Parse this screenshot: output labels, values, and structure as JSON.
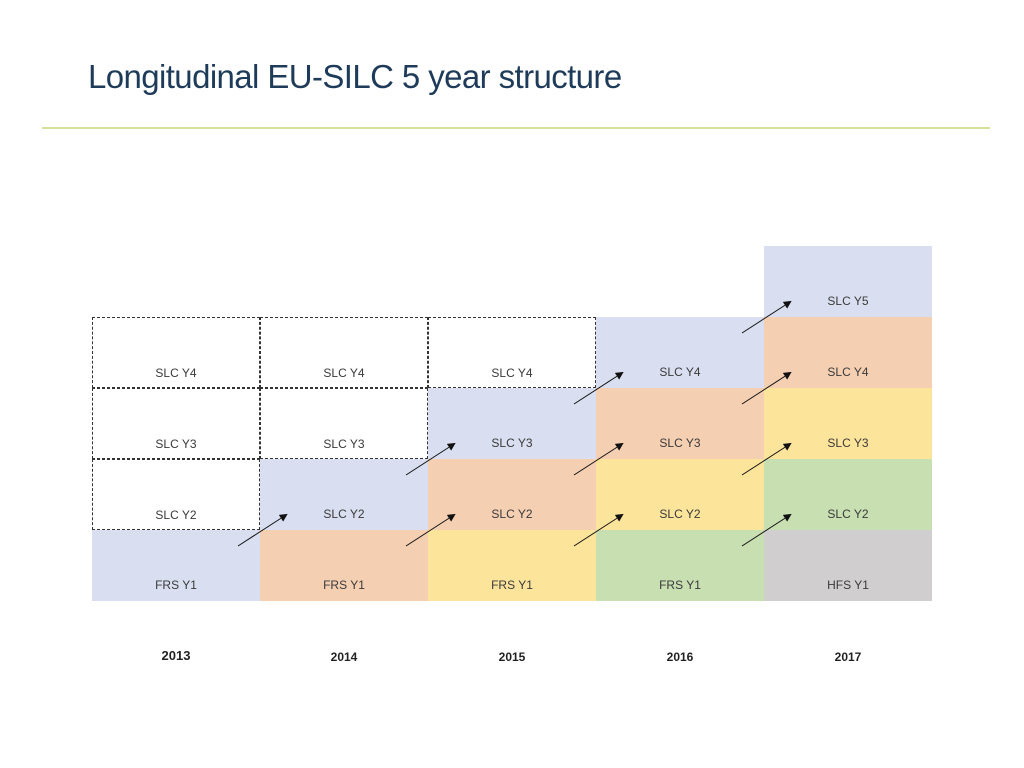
{
  "title": "Longitudinal EU-SILC 5 year structure",
  "colors": {
    "title": "#1f3b5a",
    "rule": "#d3e29b",
    "blue": "#d9dff0",
    "orange": "#f5cfb2",
    "yellow": "#fde49b",
    "green": "#c8dfb2",
    "grey": "#d0cecf"
  },
  "years": [
    "2013",
    "2014",
    "2015",
    "2016",
    "2017"
  ],
  "rows": [
    {
      "id": "y5",
      "cells": [
        {
          "label": "",
          "style": "empty"
        },
        {
          "label": "",
          "style": "empty"
        },
        {
          "label": "",
          "style": "empty"
        },
        {
          "label": "",
          "style": "empty"
        },
        {
          "label": "SLC Y5",
          "style": "blue"
        }
      ]
    },
    {
      "id": "y4",
      "cells": [
        {
          "label": "SLC Y4",
          "style": "dashed"
        },
        {
          "label": "SLC Y4",
          "style": "dashed"
        },
        {
          "label": "SLC Y4",
          "style": "dashed"
        },
        {
          "label": "SLC Y4",
          "style": "blue"
        },
        {
          "label": "SLC Y4",
          "style": "orange"
        }
      ]
    },
    {
      "id": "y3",
      "cells": [
        {
          "label": "SLC Y3",
          "style": "dashed"
        },
        {
          "label": "SLC Y3",
          "style": "dashed"
        },
        {
          "label": "SLC Y3",
          "style": "blue"
        },
        {
          "label": "SLC Y3",
          "style": "orange"
        },
        {
          "label": "SLC Y3",
          "style": "yellow"
        }
      ]
    },
    {
      "id": "y2",
      "cells": [
        {
          "label": "SLC Y2",
          "style": "dashed"
        },
        {
          "label": "SLC Y2",
          "style": "blue"
        },
        {
          "label": "SLC Y2",
          "style": "orange"
        },
        {
          "label": "SLC Y2",
          "style": "yellow"
        },
        {
          "label": "SLC Y2",
          "style": "green"
        }
      ]
    },
    {
      "id": "y1",
      "cells": [
        {
          "label": "FRS Y1",
          "style": "blue"
        },
        {
          "label": "FRS Y1",
          "style": "orange"
        },
        {
          "label": "FRS Y1",
          "style": "yellow"
        },
        {
          "label": "FRS Y1",
          "style": "green"
        },
        {
          "label": "HFS Y1",
          "style": "grey"
        }
      ]
    }
  ],
  "arrows": [
    {
      "from": [
        0,
        "y1"
      ],
      "to": [
        1,
        "y2"
      ]
    },
    {
      "from": [
        1,
        "y2"
      ],
      "to": [
        2,
        "y3"
      ]
    },
    {
      "from": [
        1,
        "y1"
      ],
      "to": [
        2,
        "y2"
      ]
    },
    {
      "from": [
        2,
        "y3"
      ],
      "to": [
        3,
        "y4"
      ]
    },
    {
      "from": [
        2,
        "y2"
      ],
      "to": [
        3,
        "y3"
      ]
    },
    {
      "from": [
        2,
        "y1"
      ],
      "to": [
        3,
        "y2"
      ]
    },
    {
      "from": [
        3,
        "y4"
      ],
      "to": [
        4,
        "y5"
      ]
    },
    {
      "from": [
        3,
        "y3"
      ],
      "to": [
        4,
        "y4"
      ]
    },
    {
      "from": [
        3,
        "y2"
      ],
      "to": [
        4,
        "y3"
      ]
    },
    {
      "from": [
        3,
        "y1"
      ],
      "to": [
        4,
        "y2"
      ]
    }
  ]
}
